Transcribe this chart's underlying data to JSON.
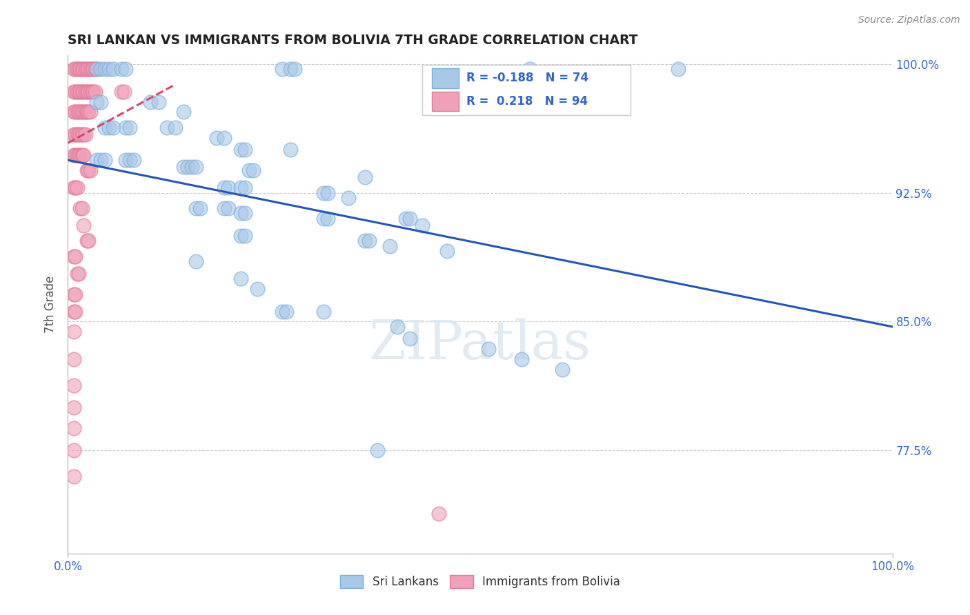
{
  "title": "SRI LANKAN VS IMMIGRANTS FROM BOLIVIA 7TH GRADE CORRELATION CHART",
  "source_text": "Source: ZipAtlas.com",
  "ylabel": "7th Grade",
  "xlim": [
    0.0,
    1.0
  ],
  "ylim": [
    0.715,
    1.005
  ],
  "yticks": [
    0.775,
    0.85,
    0.925,
    1.0
  ],
  "ytick_labels": [
    "77.5%",
    "85.0%",
    "92.5%",
    "100.0%"
  ],
  "xtick_labels": [
    "0.0%",
    "100.0%"
  ],
  "xticks": [
    0.0,
    1.0
  ],
  "blue_color": "#a8c8e8",
  "blue_edge_color": "#7aaed8",
  "pink_color": "#f0a0b8",
  "pink_edge_color": "#e07898",
  "blue_line_color": "#2255bb",
  "pink_line_color": "#dd4466",
  "grid_color": "#cccccc",
  "title_color": "#222222",
  "axis_label_color": "#555555",
  "tick_label_color": "#3366cc",
  "watermark": "ZIPatlas",
  "blue_trend_start_x": 0.0,
  "blue_trend_start_y": 0.944,
  "blue_trend_end_x": 1.0,
  "blue_trend_end_y": 0.847,
  "pink_trend_start_x": 0.0,
  "pink_trend_start_y": 0.954,
  "pink_trend_end_x": 0.13,
  "pink_trend_end_y": 0.988,
  "blue_dots": [
    [
      0.035,
      0.997
    ],
    [
      0.04,
      0.997
    ],
    [
      0.045,
      0.997
    ],
    [
      0.05,
      0.997
    ],
    [
      0.055,
      0.997
    ],
    [
      0.065,
      0.997
    ],
    [
      0.07,
      0.997
    ],
    [
      0.26,
      0.997
    ],
    [
      0.27,
      0.997
    ],
    [
      0.275,
      0.997
    ],
    [
      0.56,
      0.997
    ],
    [
      0.74,
      0.997
    ],
    [
      0.035,
      0.978
    ],
    [
      0.04,
      0.978
    ],
    [
      0.1,
      0.978
    ],
    [
      0.11,
      0.978
    ],
    [
      0.14,
      0.972
    ],
    [
      0.045,
      0.963
    ],
    [
      0.05,
      0.963
    ],
    [
      0.055,
      0.963
    ],
    [
      0.07,
      0.963
    ],
    [
      0.075,
      0.963
    ],
    [
      0.12,
      0.963
    ],
    [
      0.13,
      0.963
    ],
    [
      0.18,
      0.957
    ],
    [
      0.19,
      0.957
    ],
    [
      0.21,
      0.95
    ],
    [
      0.215,
      0.95
    ],
    [
      0.27,
      0.95
    ],
    [
      0.035,
      0.944
    ],
    [
      0.04,
      0.944
    ],
    [
      0.045,
      0.944
    ],
    [
      0.07,
      0.944
    ],
    [
      0.075,
      0.944
    ],
    [
      0.08,
      0.944
    ],
    [
      0.14,
      0.94
    ],
    [
      0.145,
      0.94
    ],
    [
      0.15,
      0.94
    ],
    [
      0.155,
      0.94
    ],
    [
      0.22,
      0.938
    ],
    [
      0.225,
      0.938
    ],
    [
      0.36,
      0.934
    ],
    [
      0.19,
      0.928
    ],
    [
      0.195,
      0.928
    ],
    [
      0.21,
      0.928
    ],
    [
      0.215,
      0.928
    ],
    [
      0.31,
      0.925
    ],
    [
      0.315,
      0.925
    ],
    [
      0.34,
      0.922
    ],
    [
      0.155,
      0.916
    ],
    [
      0.16,
      0.916
    ],
    [
      0.19,
      0.916
    ],
    [
      0.195,
      0.916
    ],
    [
      0.21,
      0.913
    ],
    [
      0.215,
      0.913
    ],
    [
      0.31,
      0.91
    ],
    [
      0.315,
      0.91
    ],
    [
      0.41,
      0.91
    ],
    [
      0.415,
      0.91
    ],
    [
      0.43,
      0.906
    ],
    [
      0.21,
      0.9
    ],
    [
      0.215,
      0.9
    ],
    [
      0.36,
      0.897
    ],
    [
      0.365,
      0.897
    ],
    [
      0.39,
      0.894
    ],
    [
      0.46,
      0.891
    ],
    [
      0.155,
      0.885
    ],
    [
      0.21,
      0.875
    ],
    [
      0.23,
      0.869
    ],
    [
      0.26,
      0.856
    ],
    [
      0.265,
      0.856
    ],
    [
      0.31,
      0.856
    ],
    [
      0.4,
      0.847
    ],
    [
      0.415,
      0.84
    ],
    [
      0.51,
      0.834
    ],
    [
      0.55,
      0.828
    ],
    [
      0.6,
      0.822
    ],
    [
      0.375,
      0.775
    ]
  ],
  "pink_dots": [
    [
      0.007,
      0.997
    ],
    [
      0.009,
      0.997
    ],
    [
      0.011,
      0.997
    ],
    [
      0.013,
      0.997
    ],
    [
      0.015,
      0.997
    ],
    [
      0.017,
      0.997
    ],
    [
      0.019,
      0.997
    ],
    [
      0.021,
      0.997
    ],
    [
      0.023,
      0.997
    ],
    [
      0.025,
      0.997
    ],
    [
      0.027,
      0.997
    ],
    [
      0.029,
      0.997
    ],
    [
      0.031,
      0.997
    ],
    [
      0.033,
      0.997
    ],
    [
      0.035,
      0.997
    ],
    [
      0.007,
      0.984
    ],
    [
      0.009,
      0.984
    ],
    [
      0.011,
      0.984
    ],
    [
      0.013,
      0.984
    ],
    [
      0.015,
      0.984
    ],
    [
      0.017,
      0.984
    ],
    [
      0.019,
      0.984
    ],
    [
      0.021,
      0.984
    ],
    [
      0.023,
      0.984
    ],
    [
      0.025,
      0.984
    ],
    [
      0.027,
      0.984
    ],
    [
      0.029,
      0.984
    ],
    [
      0.031,
      0.984
    ],
    [
      0.033,
      0.984
    ],
    [
      0.065,
      0.984
    ],
    [
      0.068,
      0.984
    ],
    [
      0.007,
      0.972
    ],
    [
      0.009,
      0.972
    ],
    [
      0.011,
      0.972
    ],
    [
      0.013,
      0.972
    ],
    [
      0.015,
      0.972
    ],
    [
      0.017,
      0.972
    ],
    [
      0.019,
      0.972
    ],
    [
      0.021,
      0.972
    ],
    [
      0.023,
      0.972
    ],
    [
      0.025,
      0.972
    ],
    [
      0.027,
      0.972
    ],
    [
      0.007,
      0.959
    ],
    [
      0.009,
      0.959
    ],
    [
      0.011,
      0.959
    ],
    [
      0.013,
      0.959
    ],
    [
      0.015,
      0.959
    ],
    [
      0.017,
      0.959
    ],
    [
      0.019,
      0.959
    ],
    [
      0.021,
      0.959
    ],
    [
      0.007,
      0.947
    ],
    [
      0.009,
      0.947
    ],
    [
      0.011,
      0.947
    ],
    [
      0.013,
      0.947
    ],
    [
      0.015,
      0.947
    ],
    [
      0.017,
      0.947
    ],
    [
      0.019,
      0.947
    ],
    [
      0.023,
      0.938
    ],
    [
      0.025,
      0.938
    ],
    [
      0.027,
      0.938
    ],
    [
      0.007,
      0.928
    ],
    [
      0.009,
      0.928
    ],
    [
      0.011,
      0.928
    ],
    [
      0.015,
      0.916
    ],
    [
      0.017,
      0.916
    ],
    [
      0.019,
      0.906
    ],
    [
      0.023,
      0.897
    ],
    [
      0.025,
      0.897
    ],
    [
      0.007,
      0.888
    ],
    [
      0.009,
      0.888
    ],
    [
      0.011,
      0.878
    ],
    [
      0.013,
      0.878
    ],
    [
      0.007,
      0.866
    ],
    [
      0.009,
      0.866
    ],
    [
      0.007,
      0.856
    ],
    [
      0.009,
      0.856
    ],
    [
      0.007,
      0.844
    ],
    [
      0.007,
      0.828
    ],
    [
      0.007,
      0.813
    ],
    [
      0.007,
      0.8
    ],
    [
      0.007,
      0.788
    ],
    [
      0.007,
      0.775
    ],
    [
      0.007,
      0.76
    ],
    [
      0.45,
      0.738
    ]
  ]
}
